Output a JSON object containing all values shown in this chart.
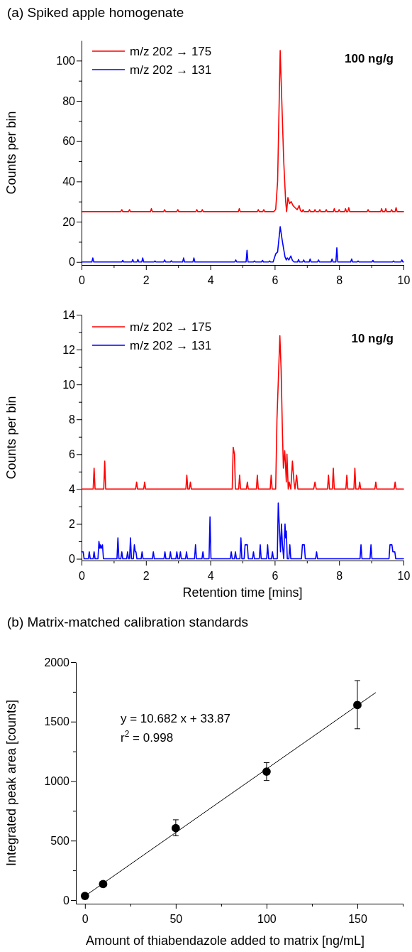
{
  "chart_data": [
    {
      "type": "line",
      "title": "(a) Spiked apple homogenate",
      "ylabel": "Counts per bin",
      "annotations": [
        "100 ng/g"
      ],
      "legend": "top left",
      "xlim": [
        0,
        10
      ],
      "xticks": [
        0,
        {
          "value": 1,
          "label": null
        },
        2,
        {
          "value": 3,
          "label": null
        },
        4,
        {
          "value": 5,
          "label": null
        },
        6,
        {
          "value": 7,
          "label": null
        },
        8,
        {
          "value": 9,
          "label": null
        },
        10
      ],
      "ylim": [
        -1.5,
        110
      ],
      "yticks": [
        0,
        {
          "value": 10,
          "label": null
        },
        20,
        {
          "value": 30,
          "label": null
        },
        40,
        {
          "value": 50,
          "label": null
        },
        60,
        {
          "value": 70,
          "label": null
        },
        80,
        {
          "value": 90,
          "label": null
        },
        100
      ],
      "series": [
        {
          "name": "m/z 202 → 175",
          "color": "#ff0000",
          "x": [
            0,
            1.22,
            1.25,
            1.28,
            1.46,
            1.49,
            1.52,
            2.14,
            2.17,
            2.2,
            2.55,
            2.58,
            2.61,
            2.96,
            2.99,
            3.02,
            3.55,
            3.58,
            3.61,
            3.72,
            3.75,
            3.78,
            4.87,
            4.9,
            4.93,
            5.46,
            5.49,
            5.52,
            5.63,
            5.66,
            5.69,
            5.97,
            6.03,
            6.09,
            6.17,
            6.28,
            6.34,
            6.37,
            6.41,
            6.46,
            6.51,
            6.57,
            6.63,
            6.7,
            6.76,
            6.8,
            6.84,
            6.85,
            6.88,
            6.91,
            7.05,
            7.08,
            7.11,
            7.22,
            7.25,
            7.28,
            7.37,
            7.4,
            7.43,
            7.57,
            7.6,
            7.63,
            7.82,
            7.85,
            7.88,
            7.97,
            8.0,
            8.03,
            8.17,
            8.2,
            8.23,
            8.27,
            8.3,
            8.33,
            8.87,
            8.9,
            8.93,
            9.29,
            9.32,
            9.35,
            9.42,
            9.45,
            9.48,
            9.6,
            9.63,
            9.66,
            9.74,
            9.77,
            9.8,
            10
          ],
          "values": [
            25,
            25,
            26,
            25,
            25,
            26,
            25,
            25,
            26.5,
            25,
            25,
            26,
            25,
            25,
            26,
            25,
            25,
            26,
            25,
            25,
            26,
            25,
            25,
            26.5,
            25,
            25,
            26,
            25,
            25,
            26,
            25,
            25,
            26,
            40,
            105,
            50,
            30,
            25,
            32,
            29,
            30,
            28,
            27,
            26,
            28,
            25.5,
            25,
            25,
            26,
            25,
            25,
            26,
            25,
            25,
            26,
            25,
            25,
            26,
            25,
            25,
            26,
            25,
            25,
            26.5,
            25,
            25,
            26,
            25,
            25,
            26.5,
            25,
            25,
            27,
            25,
            25,
            26,
            25,
            25,
            26.5,
            25,
            25,
            26.5,
            25,
            25,
            26,
            25,
            25,
            27,
            25,
            25
          ]
        },
        {
          "name": "m/z 202 → 131",
          "color": "#0000ff",
          "x": [
            0,
            0.32,
            0.35,
            0.38,
            1.25,
            1.28,
            1.31,
            1.56,
            1.59,
            1.62,
            1.72,
            1.75,
            1.78,
            1.87,
            1.9,
            1.93,
            2.25,
            2.28,
            2.31,
            2.55,
            2.58,
            2.61,
            2.76,
            2.79,
            2.82,
            3.14,
            3.17,
            3.2,
            3.46,
            3.49,
            3.52,
            4.76,
            4.79,
            4.82,
            5.11,
            5.14,
            5.17,
            5.34,
            5.37,
            5.4,
            5.59,
            5.62,
            5.65,
            5.81,
            5.84,
            5.87,
            5.95,
            6.0,
            6.03,
            6.09,
            6.17,
            6.24,
            6.32,
            6.36,
            6.39,
            6.44,
            6.5,
            6.55,
            6.6,
            6.71,
            6.74,
            6.77,
            6.87,
            6.9,
            6.93,
            7.07,
            7.1,
            7.13,
            7.33,
            7.36,
            7.39,
            7.75,
            7.78,
            7.81,
            7.9,
            7.93,
            7.96,
            8.36,
            8.39,
            8.42,
            8.56,
            8.59,
            8.62,
            9.02,
            9.05,
            9.08,
            9.66,
            9.69,
            9.72,
            9.92,
            9.95,
            9.98,
            10
          ],
          "values": [
            0,
            0,
            2,
            0,
            0,
            0.8,
            0,
            0,
            1.2,
            0,
            0,
            1.2,
            0,
            0,
            2,
            0,
            0,
            0.5,
            0,
            0,
            1,
            0,
            0,
            0.6,
            0,
            0,
            2,
            0,
            0,
            2,
            0,
            0,
            1,
            0,
            0,
            5.8,
            0,
            0,
            0.5,
            0,
            0,
            0.8,
            0,
            0,
            0.5,
            0,
            0,
            2.5,
            4,
            5,
            17.5,
            10,
            2.5,
            1,
            2,
            1,
            3,
            0.8,
            0,
            0,
            1.2,
            0,
            0,
            1,
            0,
            0,
            1.5,
            0,
            0,
            1,
            0,
            0,
            1.5,
            0,
            0,
            7,
            0,
            0,
            1.5,
            0,
            0,
            0.5,
            0,
            0,
            0.8,
            0,
            0,
            0.5,
            0,
            0,
            1,
            0,
            0
          ]
        }
      ]
    },
    {
      "type": "line",
      "xlabel": "Retention time [mins]",
      "ylabel": "Counts per bin",
      "annotations": [
        "10 ng/g"
      ],
      "legend": "top left",
      "xlim": [
        0,
        10
      ],
      "xticks": [
        0,
        {
          "value": 1,
          "label": null
        },
        2,
        {
          "value": 3,
          "label": null
        },
        4,
        {
          "value": 5,
          "label": null
        },
        6,
        {
          "value": 7,
          "label": null
        },
        8,
        {
          "value": 9,
          "label": null
        },
        10
      ],
      "ylim": [
        -0.1,
        14
      ],
      "yticks": [
        0,
        {
          "value": 1,
          "label": null
        },
        2,
        {
          "value": 3,
          "label": null
        },
        4,
        {
          "value": 5,
          "label": null
        },
        6,
        {
          "value": 7,
          "label": null
        },
        8,
        {
          "value": 9,
          "label": null
        },
        10,
        {
          "value": 11,
          "label": null
        },
        12,
        {
          "value": 13,
          "label": null
        },
        14
      ],
      "series": [
        {
          "name": "m/z 202 → 175",
          "color": "#ff0000",
          "x": [
            0,
            0.36,
            0.39,
            0.42,
            0.69,
            0.72,
            0.75,
            1.68,
            1.71,
            1.74,
            1.93,
            1.96,
            1.99,
            3.24,
            3.27,
            3.3,
            3.35,
            3.38,
            3.41,
            4.68,
            4.71,
            4.75,
            4.78,
            4.88,
            4.91,
            4.94,
            5.12,
            5.15,
            5.18,
            5.43,
            5.46,
            5.49,
            5.86,
            5.89,
            5.92,
            6.03,
            6.07,
            6.1,
            6.16,
            6.2,
            6.24,
            6.27,
            6.31,
            6.34,
            6.36,
            6.38,
            6.42,
            6.45,
            6.5,
            6.55,
            6.6,
            6.63,
            6.68,
            6.72,
            7.21,
            7.25,
            7.29,
            7.64,
            7.67,
            7.7,
            7.79,
            7.82,
            7.85,
            8.21,
            8.24,
            8.27,
            8.46,
            8.49,
            8.52,
            8.61,
            8.64,
            8.67,
            9.11,
            9.14,
            9.17,
            9.71,
            9.74,
            9.77,
            10
          ],
          "values": [
            4,
            4,
            5.2,
            4,
            4,
            5.6,
            4,
            4,
            4.4,
            4,
            4,
            4.4,
            4,
            4,
            4.8,
            4,
            4,
            4.4,
            4,
            4,
            6.4,
            6.0,
            4,
            4,
            4.8,
            4,
            4,
            4.4,
            4,
            4,
            4.8,
            4,
            4,
            4.8,
            4,
            4,
            8.0,
            9.6,
            12.8,
            10.8,
            7.2,
            5.2,
            6.2,
            5.2,
            4.4,
            6.0,
            4,
            4.4,
            4,
            5.6,
            4.4,
            4.0,
            4.8,
            4,
            4,
            4.4,
            4,
            4,
            4.8,
            4,
            4,
            5.2,
            4,
            4,
            4.8,
            4,
            4,
            5.2,
            4,
            4,
            4.4,
            4,
            4,
            4.4,
            4,
            4,
            4.4,
            4,
            4
          ]
        },
        {
          "name": "m/z 202 → 131",
          "color": "#0000ff",
          "x": [
            0,
            0.05,
            0.08,
            0.21,
            0.24,
            0.27,
            0.36,
            0.39,
            0.42,
            0.51,
            0.54,
            0.57,
            0.59,
            0.62,
            0.65,
            0.68,
            1.1,
            1.13,
            1.16,
            1.22,
            1.25,
            1.28,
            1.4,
            1.43,
            1.46,
            1.49,
            1.52,
            1.55,
            1.61,
            1.64,
            1.67,
            1.69,
            1.72,
            1.85,
            1.88,
            1.91,
            2.2,
            2.23,
            2.26,
            2.56,
            2.59,
            2.62,
            2.73,
            2.76,
            2.79,
            2.93,
            2.96,
            2.99,
            3.04,
            3.07,
            3.1,
            3.23,
            3.26,
            3.29,
            3.51,
            3.54,
            3.57,
            3.74,
            3.77,
            3.8,
            3.96,
            3.99,
            4.02,
            4.62,
            4.65,
            4.68,
            4.75,
            4.78,
            4.81,
            4.92,
            4.95,
            4.98,
            5.05,
            5.08,
            5.15,
            5.18,
            5.31,
            5.34,
            5.37,
            5.52,
            5.55,
            5.58,
            5.75,
            5.78,
            5.81,
            5.9,
            5.93,
            5.96,
            6.08,
            6.11,
            6.15,
            6.18,
            6.21,
            6.24,
            6.28,
            6.3,
            6.32,
            6.34,
            6.36,
            6.39,
            6.44,
            6.47,
            6.5,
            6.83,
            6.86,
            6.92,
            6.95,
            7.27,
            7.3,
            7.33,
            8.65,
            8.68,
            8.71,
            8.96,
            8.99,
            9.02,
            9.55,
            9.58,
            9.64,
            9.67,
            9.73,
            9.76,
            10
          ],
          "values": [
            0.4,
            0.4,
            0,
            0,
            0.4,
            0,
            0,
            0.4,
            0,
            0,
            1.0,
            0.6,
            0.8,
            0.6,
            0.8,
            0,
            0,
            1.2,
            0,
            0,
            0.4,
            0,
            0,
            0.4,
            0,
            0,
            1.2,
            0,
            0,
            0.8,
            0.4,
            0.4,
            0,
            0,
            0.4,
            0,
            0,
            0.4,
            0,
            0,
            0.4,
            0,
            0,
            0.4,
            0,
            0,
            0.4,
            0,
            0,
            0.4,
            0,
            0,
            0.4,
            0,
            0,
            0.8,
            0,
            0,
            0.4,
            0,
            0,
            2.4,
            0,
            0,
            0.4,
            0,
            0,
            0.4,
            0,
            0,
            1.2,
            0,
            0,
            0.8,
            0.8,
            0,
            0,
            0.4,
            0,
            0,
            0.8,
            0,
            0,
            0.8,
            0,
            0,
            0.4,
            0,
            0,
            3.2,
            1.6,
            0.4,
            2.0,
            0.8,
            0,
            1.2,
            2.0,
            1.2,
            1.6,
            0,
            0,
            0.8,
            0,
            0,
            0.8,
            0.8,
            0,
            0,
            0.4,
            0,
            0,
            0.8,
            0,
            0,
            0.8,
            0,
            0,
            0.8,
            0.8,
            0.4,
            0.4,
            0,
            0
          ]
        }
      ]
    },
    {
      "type": "scatter",
      "title": "(b) Matrix-matched calibration standards",
      "xlabel": "Amount of thiabendazole added to matrix [ng/mL]",
      "ylabel": "Integrated peak area [counts]",
      "annotations": [
        "y = 10.682 x + 33.87",
        "r$^{2}$ = 0.998"
      ],
      "xlim": [
        -5,
        175
      ],
      "xticks": [
        0,
        {
          "value": 25,
          "label": null
        },
        50,
        {
          "value": 75,
          "label": null
        },
        100,
        {
          "value": 125,
          "label": null
        },
        150,
        {
          "value": 175,
          "label": null
        }
      ],
      "ylim": [
        -30,
        2000
      ],
      "yticks": [
        0,
        {
          "value": 250,
          "label": null
        },
        500,
        {
          "value": 750,
          "label": null
        },
        1000,
        {
          "value": 1250,
          "label": null
        },
        1500,
        {
          "value": 1750,
          "label": null
        },
        2000
      ],
      "series": [
        {
          "marker": "circle",
          "color": "#000000",
          "x": [
            0,
            10,
            50,
            100,
            150
          ],
          "values": [
            35,
            135,
            605,
            1080,
            1640
          ],
          "errors": [
            null,
            null,
            [
              540,
              675
            ],
            [
              1005,
              1155
            ],
            [
              1440,
              1845
            ]
          ]
        },
        {
          "type": "line",
          "color": "#000000",
          "x": [
            0,
            160
          ],
          "values": [
            34,
            1743
          ]
        }
      ]
    }
  ]
}
